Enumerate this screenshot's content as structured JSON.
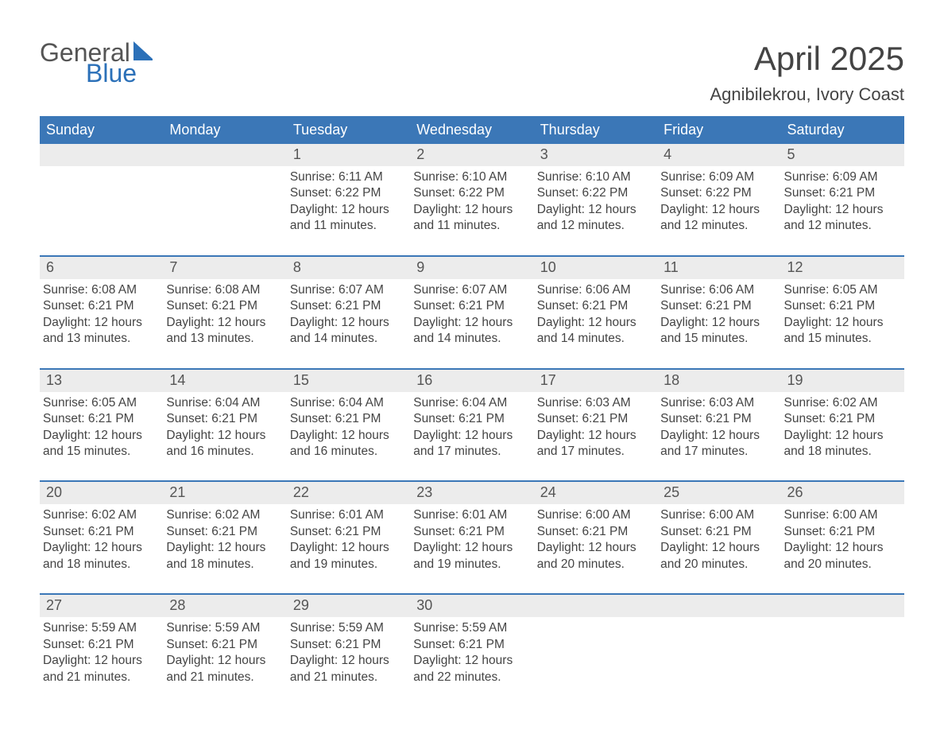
{
  "brand": {
    "name_main": "General",
    "name_sub": "Blue",
    "sail_color": "#2b70b8",
    "text_main_color": "#555555",
    "text_sub_color": "#2b70b8"
  },
  "title": {
    "month": "April 2025",
    "location": "Agnibilekrou, Ivory Coast",
    "month_fontsize": 42,
    "location_fontsize": 22,
    "text_color": "#444444"
  },
  "styling": {
    "header_bg": "#3b77b7",
    "header_text_color": "#ffffff",
    "daynum_bg": "#ececec",
    "daynum_text_color": "#555555",
    "body_text_color": "#444444",
    "week_border_color": "#3b77b7",
    "body_fontsize": 15.5,
    "dow_fontsize": 18,
    "daynum_fontsize": 18,
    "background_color": "#ffffff"
  },
  "days_of_week": [
    "Sunday",
    "Monday",
    "Tuesday",
    "Wednesday",
    "Thursday",
    "Friday",
    "Saturday"
  ],
  "weeks": [
    [
      {
        "num": "",
        "sunrise": "",
        "sunset": "",
        "daylight": ""
      },
      {
        "num": "",
        "sunrise": "",
        "sunset": "",
        "daylight": ""
      },
      {
        "num": "1",
        "sunrise": "Sunrise: 6:11 AM",
        "sunset": "Sunset: 6:22 PM",
        "daylight": "Daylight: 12 hours and 11 minutes."
      },
      {
        "num": "2",
        "sunrise": "Sunrise: 6:10 AM",
        "sunset": "Sunset: 6:22 PM",
        "daylight": "Daylight: 12 hours and 11 minutes."
      },
      {
        "num": "3",
        "sunrise": "Sunrise: 6:10 AM",
        "sunset": "Sunset: 6:22 PM",
        "daylight": "Daylight: 12 hours and 12 minutes."
      },
      {
        "num": "4",
        "sunrise": "Sunrise: 6:09 AM",
        "sunset": "Sunset: 6:22 PM",
        "daylight": "Daylight: 12 hours and 12 minutes."
      },
      {
        "num": "5",
        "sunrise": "Sunrise: 6:09 AM",
        "sunset": "Sunset: 6:21 PM",
        "daylight": "Daylight: 12 hours and 12 minutes."
      }
    ],
    [
      {
        "num": "6",
        "sunrise": "Sunrise: 6:08 AM",
        "sunset": "Sunset: 6:21 PM",
        "daylight": "Daylight: 12 hours and 13 minutes."
      },
      {
        "num": "7",
        "sunrise": "Sunrise: 6:08 AM",
        "sunset": "Sunset: 6:21 PM",
        "daylight": "Daylight: 12 hours and 13 minutes."
      },
      {
        "num": "8",
        "sunrise": "Sunrise: 6:07 AM",
        "sunset": "Sunset: 6:21 PM",
        "daylight": "Daylight: 12 hours and 14 minutes."
      },
      {
        "num": "9",
        "sunrise": "Sunrise: 6:07 AM",
        "sunset": "Sunset: 6:21 PM",
        "daylight": "Daylight: 12 hours and 14 minutes."
      },
      {
        "num": "10",
        "sunrise": "Sunrise: 6:06 AM",
        "sunset": "Sunset: 6:21 PM",
        "daylight": "Daylight: 12 hours and 14 minutes."
      },
      {
        "num": "11",
        "sunrise": "Sunrise: 6:06 AM",
        "sunset": "Sunset: 6:21 PM",
        "daylight": "Daylight: 12 hours and 15 minutes."
      },
      {
        "num": "12",
        "sunrise": "Sunrise: 6:05 AM",
        "sunset": "Sunset: 6:21 PM",
        "daylight": "Daylight: 12 hours and 15 minutes."
      }
    ],
    [
      {
        "num": "13",
        "sunrise": "Sunrise: 6:05 AM",
        "sunset": "Sunset: 6:21 PM",
        "daylight": "Daylight: 12 hours and 15 minutes."
      },
      {
        "num": "14",
        "sunrise": "Sunrise: 6:04 AM",
        "sunset": "Sunset: 6:21 PM",
        "daylight": "Daylight: 12 hours and 16 minutes."
      },
      {
        "num": "15",
        "sunrise": "Sunrise: 6:04 AM",
        "sunset": "Sunset: 6:21 PM",
        "daylight": "Daylight: 12 hours and 16 minutes."
      },
      {
        "num": "16",
        "sunrise": "Sunrise: 6:04 AM",
        "sunset": "Sunset: 6:21 PM",
        "daylight": "Daylight: 12 hours and 17 minutes."
      },
      {
        "num": "17",
        "sunrise": "Sunrise: 6:03 AM",
        "sunset": "Sunset: 6:21 PM",
        "daylight": "Daylight: 12 hours and 17 minutes."
      },
      {
        "num": "18",
        "sunrise": "Sunrise: 6:03 AM",
        "sunset": "Sunset: 6:21 PM",
        "daylight": "Daylight: 12 hours and 17 minutes."
      },
      {
        "num": "19",
        "sunrise": "Sunrise: 6:02 AM",
        "sunset": "Sunset: 6:21 PM",
        "daylight": "Daylight: 12 hours and 18 minutes."
      }
    ],
    [
      {
        "num": "20",
        "sunrise": "Sunrise: 6:02 AM",
        "sunset": "Sunset: 6:21 PM",
        "daylight": "Daylight: 12 hours and 18 minutes."
      },
      {
        "num": "21",
        "sunrise": "Sunrise: 6:02 AM",
        "sunset": "Sunset: 6:21 PM",
        "daylight": "Daylight: 12 hours and 18 minutes."
      },
      {
        "num": "22",
        "sunrise": "Sunrise: 6:01 AM",
        "sunset": "Sunset: 6:21 PM",
        "daylight": "Daylight: 12 hours and 19 minutes."
      },
      {
        "num": "23",
        "sunrise": "Sunrise: 6:01 AM",
        "sunset": "Sunset: 6:21 PM",
        "daylight": "Daylight: 12 hours and 19 minutes."
      },
      {
        "num": "24",
        "sunrise": "Sunrise: 6:00 AM",
        "sunset": "Sunset: 6:21 PM",
        "daylight": "Daylight: 12 hours and 20 minutes."
      },
      {
        "num": "25",
        "sunrise": "Sunrise: 6:00 AM",
        "sunset": "Sunset: 6:21 PM",
        "daylight": "Daylight: 12 hours and 20 minutes."
      },
      {
        "num": "26",
        "sunrise": "Sunrise: 6:00 AM",
        "sunset": "Sunset: 6:21 PM",
        "daylight": "Daylight: 12 hours and 20 minutes."
      }
    ],
    [
      {
        "num": "27",
        "sunrise": "Sunrise: 5:59 AM",
        "sunset": "Sunset: 6:21 PM",
        "daylight": "Daylight: 12 hours and 21 minutes."
      },
      {
        "num": "28",
        "sunrise": "Sunrise: 5:59 AM",
        "sunset": "Sunset: 6:21 PM",
        "daylight": "Daylight: 12 hours and 21 minutes."
      },
      {
        "num": "29",
        "sunrise": "Sunrise: 5:59 AM",
        "sunset": "Sunset: 6:21 PM",
        "daylight": "Daylight: 12 hours and 21 minutes."
      },
      {
        "num": "30",
        "sunrise": "Sunrise: 5:59 AM",
        "sunset": "Sunset: 6:21 PM",
        "daylight": "Daylight: 12 hours and 22 minutes."
      },
      {
        "num": "",
        "sunrise": "",
        "sunset": "",
        "daylight": ""
      },
      {
        "num": "",
        "sunrise": "",
        "sunset": "",
        "daylight": ""
      },
      {
        "num": "",
        "sunrise": "",
        "sunset": "",
        "daylight": ""
      }
    ]
  ]
}
